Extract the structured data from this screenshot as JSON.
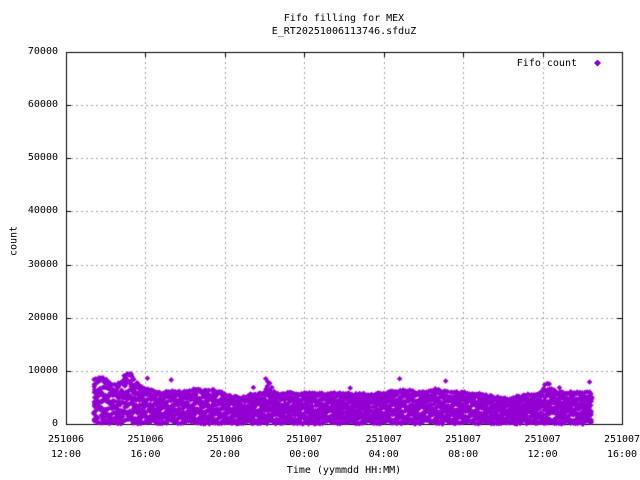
{
  "figure": {
    "title": "Fifo filling for MEX",
    "subtitle": "E_RT20251006113746.sfduZ"
  },
  "legend": {
    "label": "Fifo count"
  },
  "axes": {
    "x": {
      "label": "Time (yymmdd HH:MM)",
      "span_hours": 28,
      "tick_labels": [
        {
          "date": "251006",
          "time": "12:00"
        },
        {
          "date": "251006",
          "time": "16:00"
        },
        {
          "date": "251006",
          "time": "20:00"
        },
        {
          "date": "251007",
          "time": "00:00"
        },
        {
          "date": "251007",
          "time": "04:00"
        },
        {
          "date": "251007",
          "time": "08:00"
        },
        {
          "date": "251007",
          "time": "12:00"
        },
        {
          "date": "251007",
          "time": "16:00"
        }
      ]
    },
    "y": {
      "label": "count",
      "min": 0,
      "max": 70000,
      "tick_values": [
        0,
        10000,
        20000,
        30000,
        40000,
        50000,
        60000,
        70000
      ]
    }
  },
  "colors": {
    "points": "#9400D3",
    "grid": "#a6a6a6",
    "axis": "#000000",
    "text": "#000000",
    "background": "#ffffff"
  },
  "chart_data": {
    "type": "scatter",
    "title": "Fifo filling for MEX",
    "subtitle": "E_RT20251006113746.sfduZ",
    "xlabel": "Time (yymmdd HH:MM)",
    "ylabel": "count",
    "series_name": "Fifo count",
    "marker": "filled-diamond",
    "legend_position": "top-right-inside",
    "grid": true,
    "ylim": [
      0,
      70000
    ],
    "x_range_labels": [
      "251006 12:00",
      "251007 16:00"
    ],
    "x_tick_interval_hours": 4,
    "data_start_hours": 1.44,
    "data_end_hours": 26.54,
    "band_min_count": 0,
    "envelope_units": [
      "hours_after_251006_12:00",
      "max_count"
    ],
    "envelope": [
      [
        1.46,
        8300
      ],
      [
        1.71,
        8600
      ],
      [
        1.96,
        8700
      ],
      [
        2.22,
        7500
      ],
      [
        2.47,
        7200
      ],
      [
        2.72,
        7700
      ],
      [
        2.97,
        9000
      ],
      [
        3.22,
        9400
      ],
      [
        3.47,
        8100
      ],
      [
        3.73,
        7200
      ],
      [
        3.98,
        6700
      ],
      [
        4.23,
        6500
      ],
      [
        4.48,
        6000
      ],
      [
        4.73,
        5800
      ],
      [
        4.99,
        6000
      ],
      [
        5.24,
        6200
      ],
      [
        5.49,
        5900
      ],
      [
        5.74,
        6000
      ],
      [
        5.99,
        6200
      ],
      [
        6.24,
        6300
      ],
      [
        6.5,
        6400
      ],
      [
        6.75,
        6300
      ],
      [
        7.25,
        6400
      ],
      [
        7.76,
        6000
      ],
      [
        8.26,
        5300
      ],
      [
        8.76,
        4800
      ],
      [
        9.27,
        5500
      ],
      [
        9.52,
        5800
      ],
      [
        9.77,
        5600
      ],
      [
        10.02,
        6200
      ],
      [
        10.17,
        8500
      ],
      [
        10.32,
        6800
      ],
      [
        10.47,
        5800
      ],
      [
        10.78,
        5500
      ],
      [
        11.28,
        5800
      ],
      [
        11.78,
        5700
      ],
      [
        12.29,
        5700
      ],
      [
        12.79,
        5800
      ],
      [
        13.29,
        5600
      ],
      [
        13.8,
        5800
      ],
      [
        14.3,
        5600
      ],
      [
        14.8,
        5600
      ],
      [
        15.31,
        5600
      ],
      [
        15.81,
        5700
      ],
      [
        16.32,
        6000
      ],
      [
        16.82,
        6100
      ],
      [
        17.07,
        6400
      ],
      [
        17.32,
        6200
      ],
      [
        17.83,
        5800
      ],
      [
        18.33,
        6200
      ],
      [
        18.58,
        6500
      ],
      [
        18.83,
        6300
      ],
      [
        19.34,
        5900
      ],
      [
        19.84,
        5900
      ],
      [
        20.34,
        5700
      ],
      [
        20.85,
        5600
      ],
      [
        21.35,
        5200
      ],
      [
        21.86,
        4900
      ],
      [
        22.36,
        4700
      ],
      [
        22.61,
        4900
      ],
      [
        22.86,
        5400
      ],
      [
        23.37,
        5500
      ],
      [
        23.87,
        5700
      ],
      [
        24.07,
        7000
      ],
      [
        24.27,
        7700
      ],
      [
        24.47,
        6500
      ],
      [
        24.67,
        6000
      ],
      [
        24.87,
        5900
      ],
      [
        25.38,
        5900
      ],
      [
        25.88,
        5900
      ],
      [
        26.38,
        5800
      ],
      [
        26.54,
        5600
      ]
    ],
    "outliers": [
      [
        4.1,
        8600
      ],
      [
        5.3,
        8300
      ]
    ]
  }
}
